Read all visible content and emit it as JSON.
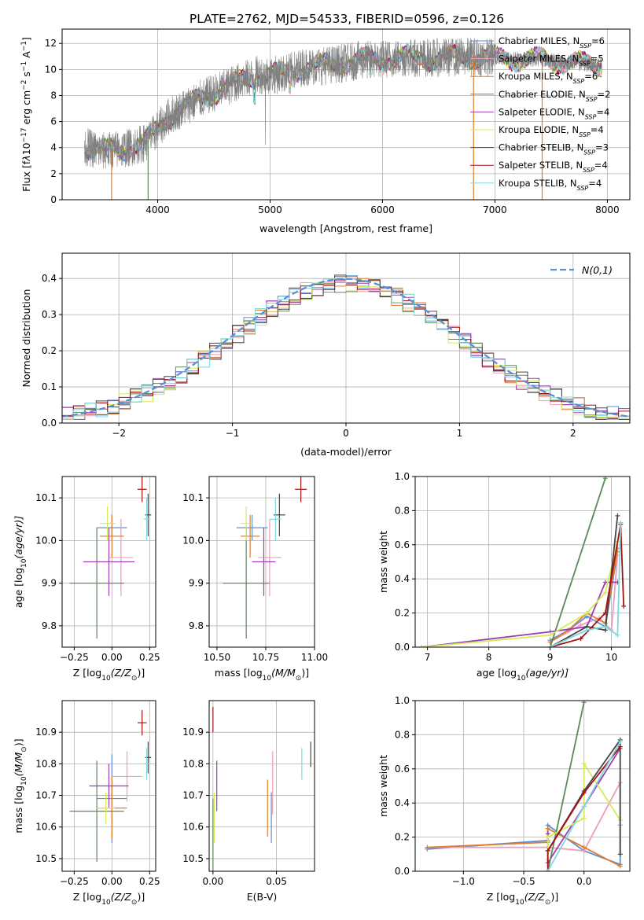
{
  "title": "PLATE=2762, MJD=54533, FIBERID=0596, z=0.126",
  "colors": {
    "Chabrier MILES": "#5b8fd6",
    "Salpeter MILES": "#f09bbd",
    "Kroupa MILES": "#e07c2a",
    "Chabrier ELODIE": "#5a8a5a",
    "Salpeter ELODIE": "#9a3fb2",
    "Kroupa ELODIE": "#d6ea56",
    "Chabrier STELIB": "#444444",
    "Salpeter STELIB": "#a31212",
    "Kroupa STELIB": "#7fd8e0"
  },
  "chart_data": [
    {
      "type": "line",
      "panel": "spectrum",
      "title": "PLATE=2762, MJD=54533, FIBERID=0596, z=0.126",
      "xlabel": "wavelength [Angstrom, rest frame]",
      "ylabel_parts": [
        "Flux [f",
        "λ",
        "10",
        "−17",
        " erg cm",
        "−2",
        " s",
        "−1",
        " A",
        "−1",
        "]"
      ],
      "xlim": [
        3150,
        8200
      ],
      "ylim": [
        0,
        13.1
      ],
      "xticks": [
        4000,
        5000,
        6000,
        7000,
        8000
      ],
      "yticks": [
        0,
        2,
        4,
        6,
        8,
        10,
        12
      ],
      "legend": "top-right",
      "series": [
        {
          "name": "Chabrier MILES",
          "nssp": 6
        },
        {
          "name": "Salpeter MILES",
          "nssp": 5
        },
        {
          "name": "Kroupa MILES",
          "nssp": 6
        },
        {
          "name": "Chabrier ELODIE",
          "nssp": 2
        },
        {
          "name": "Salpeter ELODIE",
          "nssp": 4
        },
        {
          "name": "Kroupa ELODIE",
          "nssp": 4
        },
        {
          "name": "Chabrier STELIB",
          "nssp": 3
        },
        {
          "name": "Salpeter STELIB",
          "nssp": 4
        },
        {
          "name": "Kroupa STELIB",
          "nssp": 4
        }
      ],
      "continuum": {
        "x": [
          3350,
          3500,
          3700,
          3900,
          4100,
          4300,
          4500,
          4700,
          4900,
          5100,
          5300,
          5500,
          5800,
          6000,
          6200,
          6500,
          6800,
          7000,
          7200,
          7400,
          7600,
          7800,
          7950
        ],
        "y": [
          4.1,
          3.7,
          3.9,
          4.4,
          6.4,
          7.4,
          8.2,
          9.0,
          9.6,
          9.6,
          10.2,
          10.3,
          10.7,
          10.8,
          10.9,
          10.9,
          11.0,
          10.9,
          10.8,
          10.8,
          10.6,
          10.4,
          10.4
        ]
      },
      "drops": [
        {
          "x": 3590,
          "color": "#e07c2a"
        },
        {
          "x": 3915,
          "color": "#5a8a5a"
        },
        {
          "x": 6810,
          "color": "#e07c2a"
        },
        {
          "x": 7420,
          "color": "#e07c2a"
        }
      ]
    },
    {
      "type": "line",
      "panel": "residual-histogram",
      "xlabel": "(data-model)/error",
      "ylabel": "Normed distribution",
      "xlim": [
        -2.5,
        2.5
      ],
      "ylim": [
        0,
        0.47
      ],
      "xticks": [
        -2,
        -1,
        0,
        1,
        2
      ],
      "yticks": [
        0.0,
        0.1,
        0.2,
        0.3,
        0.4
      ],
      "legend": "top-right",
      "legend_label": "N(0,1)",
      "bin_width": 0.1
    },
    {
      "type": "scatter",
      "panel": "age-vs-Z",
      "xlabel_parts": [
        "Z [log",
        "10",
        "(Z/Z",
        "⊙",
        ")]"
      ],
      "ylabel_parts": [
        "age  [log",
        "10",
        "(age/yr)]"
      ],
      "xlim": [
        -0.33,
        0.29
      ],
      "ylim": [
        9.75,
        10.15
      ],
      "xticks": [
        -0.25,
        0.0,
        0.25
      ],
      "yticks": [
        9.8,
        9.9,
        10.0,
        10.1
      ],
      "points": [
        {
          "series": "Chabrier MILES",
          "x": 0.0,
          "y": 10.03,
          "xerr": 0.1,
          "yerr": 0.03
        },
        {
          "series": "Salpeter MILES",
          "x": 0.06,
          "y": 9.96,
          "xerr": 0.08,
          "yerr": 0.09
        },
        {
          "series": "Kroupa MILES",
          "x": 0.0,
          "y": 10.01,
          "xerr": 0.08,
          "yerr": 0.05
        },
        {
          "series": "Chabrier ELODIE",
          "x": -0.1,
          "y": 9.9,
          "xerr": 0.18,
          "yerr": 0.13
        },
        {
          "series": "Salpeter ELODIE",
          "x": -0.02,
          "y": 9.95,
          "xerr": 0.17,
          "yerr": 0.08
        },
        {
          "series": "Kroupa ELODIE",
          "x": -0.03,
          "y": 10.04,
          "xerr": 0.05,
          "yerr": 0.04
        },
        {
          "series": "Chabrier STELIB",
          "x": 0.24,
          "y": 10.06,
          "xerr": 0.02,
          "yerr": 0.05
        },
        {
          "series": "Salpeter STELIB",
          "x": 0.2,
          "y": 10.12,
          "xerr": 0.03,
          "yerr": 0.03
        },
        {
          "series": "Kroupa STELIB",
          "x": 0.23,
          "y": 10.05,
          "xerr": 0.02,
          "yerr": 0.05
        }
      ]
    },
    {
      "type": "scatter",
      "panel": "age-vs-mass",
      "xlabel_parts": [
        "mass [log",
        "10",
        "(M/M",
        "⊙",
        ")]"
      ],
      "xlim": [
        10.46,
        11.0
      ],
      "ylim": [
        9.75,
        10.15
      ],
      "xticks": [
        10.5,
        10.75,
        11.0
      ],
      "yticks": [
        9.8,
        9.9,
        10.0,
        10.1
      ],
      "points": [
        {
          "series": "Chabrier MILES",
          "x": 10.68,
          "y": 10.03,
          "xerr": 0.08,
          "yerr": 0.03
        },
        {
          "series": "Salpeter MILES",
          "x": 10.77,
          "y": 9.96,
          "xerr": 0.06,
          "yerr": 0.09
        },
        {
          "series": "Kroupa MILES",
          "x": 10.67,
          "y": 10.01,
          "xerr": 0.05,
          "yerr": 0.05
        },
        {
          "series": "Chabrier ELODIE",
          "x": 10.65,
          "y": 9.9,
          "xerr": 0.12,
          "yerr": 0.13
        },
        {
          "series": "Salpeter ELODIE",
          "x": 10.74,
          "y": 9.95,
          "xerr": 0.06,
          "yerr": 0.08
        },
        {
          "series": "Kroupa ELODIE",
          "x": 10.65,
          "y": 10.04,
          "xerr": 0.03,
          "yerr": 0.04
        },
        {
          "series": "Chabrier STELIB",
          "x": 10.82,
          "y": 10.06,
          "xerr": 0.03,
          "yerr": 0.05
        },
        {
          "series": "Salpeter STELIB",
          "x": 10.93,
          "y": 10.12,
          "xerr": 0.03,
          "yerr": 0.03
        },
        {
          "series": "Kroupa STELIB",
          "x": 10.8,
          "y": 10.05,
          "xerr": 0.03,
          "yerr": 0.05
        }
      ]
    },
    {
      "type": "line",
      "panel": "mass-weight-vs-age",
      "xlabel_parts": [
        "age  [log",
        "10",
        "(age/yr)]"
      ],
      "ylabel": "mass weight",
      "xlim": [
        6.8,
        10.3
      ],
      "ylim": [
        0,
        1.0
      ],
      "xticks": [
        7,
        8,
        9,
        10
      ],
      "yticks": [
        0.0,
        0.2,
        0.4,
        0.6,
        0.8,
        1.0
      ],
      "series": [
        {
          "name": "Chabrier MILES",
          "x": [
            9.0,
            9.3,
            9.6,
            9.9,
            10.1
          ],
          "y": [
            0.04,
            0.1,
            0.18,
            0.12,
            0.56
          ]
        },
        {
          "name": "Salpeter MILES",
          "x": [
            9.0,
            9.5,
            9.8,
            10.0,
            10.1
          ],
          "y": [
            0.03,
            0.13,
            0.17,
            0.1,
            0.54
          ]
        },
        {
          "name": "Kroupa MILES",
          "x": [
            9.0,
            9.3,
            9.6,
            9.9,
            10.1
          ],
          "y": [
            0.03,
            0.1,
            0.2,
            0.14,
            0.58
          ]
        },
        {
          "name": "Chabrier ELODIE",
          "x": [
            9.0,
            9.9
          ],
          "y": [
            0.0,
            0.99
          ]
        },
        {
          "name": "Salpeter ELODIE",
          "x": [
            6.9,
            9.0,
            9.6,
            9.9,
            10.1
          ],
          "y": [
            0.0,
            0.09,
            0.12,
            0.38,
            0.38
          ]
        },
        {
          "name": "Kroupa ELODIE",
          "x": [
            6.9,
            9.0,
            9.6,
            9.9,
            10.1
          ],
          "y": [
            0.0,
            0.07,
            0.2,
            0.32,
            0.62
          ]
        },
        {
          "name": "Chabrier STELIB",
          "x": [
            9.0,
            9.6,
            9.9,
            10.1
          ],
          "y": [
            0.0,
            0.12,
            0.1,
            0.77
          ]
        },
        {
          "name": "Salpeter STELIB",
          "x": [
            9.0,
            9.5,
            9.9,
            10.15,
            10.2
          ],
          "y": [
            0.0,
            0.05,
            0.2,
            0.72,
            0.24
          ]
        },
        {
          "name": "Kroupa STELIB",
          "x": [
            9.0,
            9.6,
            9.9,
            10.1,
            10.15
          ],
          "y": [
            0.0,
            0.1,
            0.12,
            0.07,
            0.73
          ]
        }
      ]
    },
    {
      "type": "scatter",
      "panel": "mass-vs-Z",
      "xlabel_parts": [
        "Z [log",
        "10",
        "(Z/Z",
        "⊙",
        ")]"
      ],
      "ylabel_parts": [
        "mass [log",
        "10",
        "(M/M",
        "⊙",
        ")]"
      ],
      "xlim": [
        -0.33,
        0.29
      ],
      "ylim": [
        10.46,
        11.0
      ],
      "xticks": [
        -0.25,
        0.0,
        0.25
      ],
      "yticks": [
        10.5,
        10.6,
        10.7,
        10.8,
        10.9
      ],
      "points": [
        {
          "series": "Chabrier MILES",
          "x": 0.0,
          "y": 10.69,
          "xerr": 0.1,
          "yerr": 0.14
        },
        {
          "series": "Salpeter MILES",
          "x": 0.1,
          "y": 10.76,
          "xerr": 0.1,
          "yerr": 0.08
        },
        {
          "series": "Kroupa MILES",
          "x": 0.0,
          "y": 10.66,
          "xerr": 0.1,
          "yerr": 0.1
        },
        {
          "series": "Chabrier ELODIE",
          "x": -0.1,
          "y": 10.65,
          "xerr": 0.18,
          "yerr": 0.16
        },
        {
          "series": "Salpeter ELODIE",
          "x": -0.02,
          "y": 10.73,
          "xerr": 0.13,
          "yerr": 0.07
        },
        {
          "series": "Kroupa ELODIE",
          "x": -0.04,
          "y": 10.66,
          "xerr": 0.06,
          "yerr": 0.05
        },
        {
          "series": "Chabrier STELIB",
          "x": 0.24,
          "y": 10.82,
          "xerr": 0.02,
          "yerr": 0.05
        },
        {
          "series": "Salpeter STELIB",
          "x": 0.2,
          "y": 10.93,
          "xerr": 0.03,
          "yerr": 0.04
        },
        {
          "series": "Kroupa STELIB",
          "x": 0.23,
          "y": 10.8,
          "xerr": 0.02,
          "yerr": 0.05
        }
      ]
    },
    {
      "type": "scatter",
      "panel": "mass-vs-EBV",
      "xlabel": "E(B-V)",
      "xlim": [
        -0.003,
        0.08
      ],
      "ylim": [
        10.46,
        11.0
      ],
      "xticks": [
        0.0,
        0.05
      ],
      "yticks": [
        10.5,
        10.6,
        10.7,
        10.8,
        10.9
      ],
      "points": [
        {
          "series": "Chabrier MILES",
          "x": 0.046,
          "y": 10.63,
          "yerr": 0.08
        },
        {
          "series": "Salpeter MILES",
          "x": 0.047,
          "y": 10.74,
          "yerr": 0.1
        },
        {
          "series": "Kroupa MILES",
          "x": 0.043,
          "y": 10.66,
          "yerr": 0.09
        },
        {
          "series": "Chabrier ELODIE",
          "x": 0.0,
          "y": 10.57,
          "yerr": 0.12
        },
        {
          "series": "Salpeter ELODIE",
          "x": 0.003,
          "y": 10.73,
          "yerr": 0.08
        },
        {
          "series": "Kroupa ELODIE",
          "x": 0.001,
          "y": 10.63,
          "yerr": 0.08
        },
        {
          "series": "Chabrier STELIB",
          "x": 0.077,
          "y": 10.83,
          "yerr": 0.04
        },
        {
          "series": "Salpeter STELIB",
          "x": 0.0,
          "y": 10.94,
          "yerr": 0.04
        },
        {
          "series": "Kroupa STELIB",
          "x": 0.07,
          "y": 10.8,
          "yerr": 0.05
        }
      ]
    },
    {
      "type": "line",
      "panel": "mass-weight-vs-Z",
      "xlabel_parts": [
        "Z [log",
        "10",
        "(Z/Z",
        "⊙",
        ")]"
      ],
      "ylabel": "mass weight",
      "xlim": [
        -1.4,
        0.38
      ],
      "ylim": [
        0,
        1.0
      ],
      "xticks": [
        -1.0,
        -0.5,
        0.0
      ],
      "yticks": [
        0.0,
        0.2,
        0.4,
        0.6,
        0.8,
        1.0
      ],
      "series": [
        {
          "name": "Chabrier MILES",
          "x": [
            -1.3,
            -0.3,
            -0.3,
            0.0,
            0.3,
            0.3
          ],
          "y": [
            0.13,
            0.18,
            0.27,
            0.12,
            0.04,
            0.27
          ]
        },
        {
          "name": "Salpeter MILES",
          "x": [
            -1.3,
            -0.3,
            0.0,
            0.3,
            0.3
          ],
          "y": [
            0.14,
            0.14,
            0.12,
            0.52,
            0.27
          ]
        },
        {
          "name": "Kroupa MILES",
          "x": [
            -1.3,
            -0.3,
            -0.3,
            0.0,
            0.3
          ],
          "y": [
            0.14,
            0.17,
            0.25,
            0.14,
            0.03
          ]
        },
        {
          "name": "Chabrier ELODIE",
          "x": [
            -0.3,
            0.0
          ],
          "y": [
            0.0,
            0.99
          ]
        },
        {
          "name": "Salpeter ELODIE",
          "x": [
            -0.3,
            -0.3,
            0.0,
            0.3
          ],
          "y": [
            0.22,
            0.05,
            0.38,
            0.72
          ]
        },
        {
          "name": "Kroupa ELODIE",
          "x": [
            -0.3,
            -0.3,
            0.0,
            0.0,
            0.3
          ],
          "y": [
            0.07,
            0.2,
            0.31,
            0.63,
            0.3
          ]
        },
        {
          "name": "Chabrier STELIB",
          "x": [
            -0.3,
            0.0,
            0.3,
            0.3
          ],
          "y": [
            0.12,
            0.47,
            0.77,
            0.1
          ]
        },
        {
          "name": "Salpeter STELIB",
          "x": [
            -0.3,
            -0.3,
            0.0,
            0.3
          ],
          "y": [
            0.0,
            0.12,
            0.46,
            0.73
          ]
        },
        {
          "name": "Kroupa STELIB",
          "x": [
            -0.3,
            0.0,
            0.3
          ],
          "y": [
            0.0,
            0.38,
            0.76
          ]
        }
      ]
    }
  ]
}
